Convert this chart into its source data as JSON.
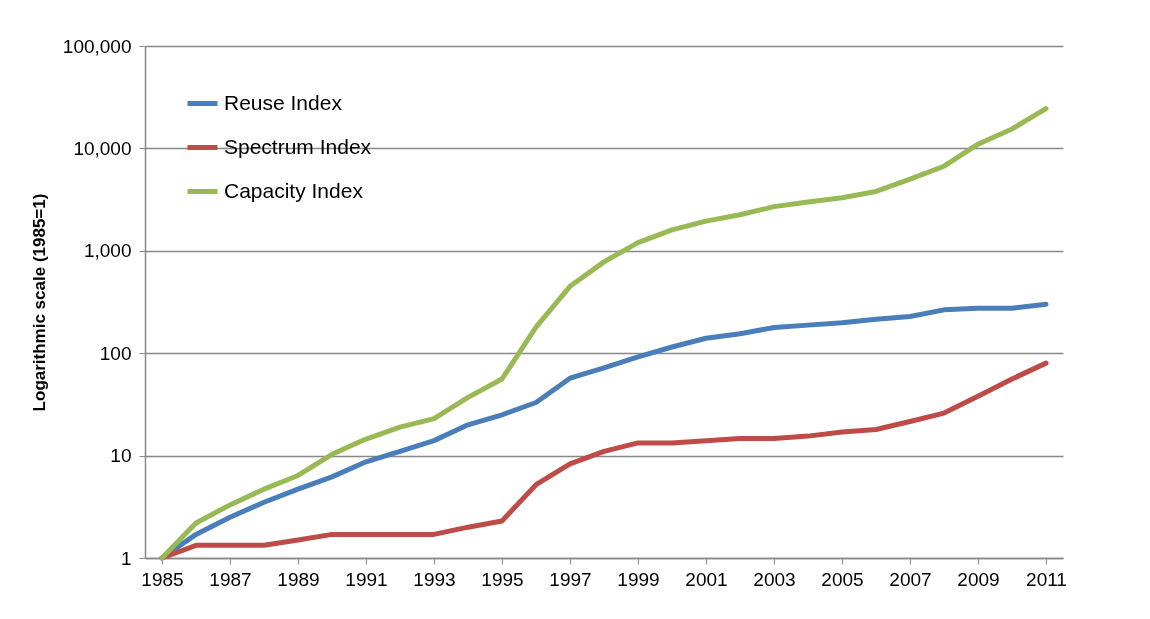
{
  "chart_data": {
    "type": "line",
    "ylabel": "Logarithmic scale  (1985=1)",
    "log": true,
    "grid": "y",
    "legend": "top left",
    "marker": "none",
    "line_style": "solid",
    "x": [
      1985,
      1986,
      1987,
      1988,
      1989,
      1990,
      1991,
      1992,
      1993,
      1994,
      1995,
      1996,
      1997,
      1998,
      1999,
      2000,
      2001,
      2002,
      2003,
      2004,
      2005,
      2006,
      2007,
      2008,
      2009,
      2010,
      2011
    ],
    "xlim": [
      1984.5,
      2011.5
    ],
    "xticks": [
      1985,
      1987,
      1989,
      1991,
      1993,
      1995,
      1997,
      1999,
      2001,
      2003,
      2005,
      2007,
      2009,
      2011
    ],
    "ylim": [
      1,
      100000
    ],
    "yticks": [
      1,
      10,
      100,
      {
        "value": 1000,
        "label": "1,000"
      },
      {
        "value": 10000,
        "label": "10,000"
      },
      {
        "value": 100000,
        "label": "100,000"
      }
    ],
    "series": [
      {
        "name": "Reuse Index",
        "color": "#4a7ebb",
        "values": [
          1,
          1.7,
          2.5,
          3.5,
          4.7,
          6.2,
          8.7,
          11,
          14,
          20,
          25,
          33,
          57,
          72,
          92,
          115,
          140,
          155,
          178,
          188,
          198,
          215,
          228,
          265,
          275,
          275,
          300
        ]
      },
      {
        "name": "Spectrum Index",
        "color": "#be4b48",
        "values": [
          1,
          1.33,
          1.33,
          1.33,
          1.5,
          1.7,
          1.7,
          1.7,
          1.7,
          2,
          2.3,
          5.2,
          8.3,
          11,
          13.3,
          13.3,
          14,
          14.7,
          14.7,
          15.5,
          17,
          18,
          21.5,
          26,
          38,
          56,
          80
        ]
      },
      {
        "name": "Capacity Index",
        "color": "#98b954",
        "values": [
          1,
          2.2,
          3.3,
          4.7,
          6.4,
          10.3,
          14.5,
          19,
          23,
          37,
          56,
          180,
          450,
          780,
          1200,
          1600,
          1950,
          2250,
          2700,
          3000,
          3300,
          3800,
          5000,
          6700,
          11000,
          15500,
          24500
        ]
      }
    ]
  }
}
